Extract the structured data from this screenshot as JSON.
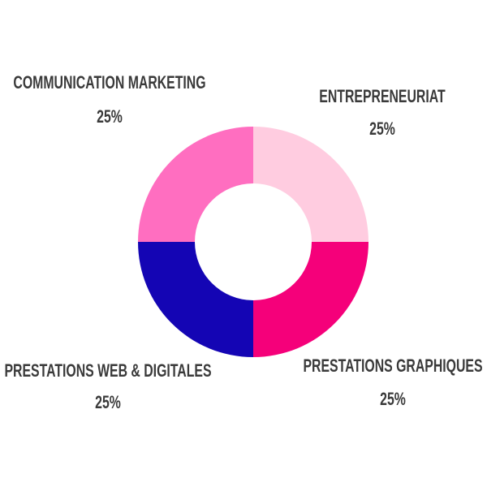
{
  "chart_data": {
    "type": "donut",
    "categories": [
      "ENTREPRENEURIAT",
      "PRESTATIONS GRAPHIQUES",
      "PRESTATIONS WEB & DIGITALES",
      "COMMUNICATION MARKETING"
    ],
    "values": [
      25,
      25,
      25,
      25
    ],
    "value_labels": [
      "25%",
      "25%",
      "25%",
      "25%"
    ],
    "colors": [
      "#ffcce0",
      "#f5007a",
      "#1405b4",
      "#ff6ec0"
    ]
  }
}
